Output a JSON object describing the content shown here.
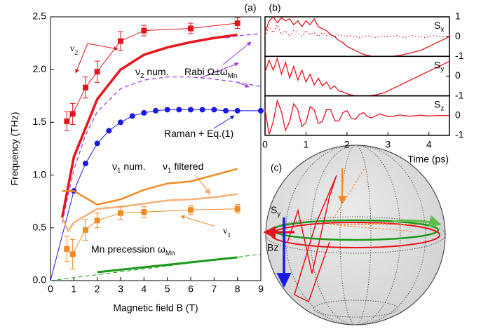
{
  "chart_data": [
    {
      "type": "line",
      "panel_label": "(a)",
      "xlabel": "Magnetic field B (T)",
      "ylabel": "Frequency (THz)",
      "xlim": [
        0,
        9
      ],
      "ylim": [
        0,
        2.5
      ],
      "xticks": [
        0,
        1,
        2,
        3,
        4,
        5,
        6,
        7,
        8,
        9
      ],
      "yticks": [
        {
          "value": 0,
          "label": "0.0"
        },
        {
          "value": 0.5,
          "label": "0.5"
        },
        {
          "value": 1,
          "label": "1.0"
        },
        {
          "value": 1.5,
          "label": "1.5"
        },
        {
          "value": 2,
          "label": "2.0"
        },
        {
          "value": 2.5,
          "label": "2.5"
        }
      ],
      "series": [
        {
          "color": "#e8141c",
          "width": 1,
          "marker": "square",
          "x": [
            0.7,
            0.95,
            1.5,
            2,
            3,
            4,
            6,
            8
          ],
          "values": [
            1.51,
            1.58,
            1.83,
            1.98,
            2.27,
            2.37,
            2.39,
            2.44
          ],
          "errors": [
            0.09,
            0.1,
            0.1,
            0.1,
            0.09,
            0.05,
            0.05,
            0.05
          ]
        },
        {
          "color": "#e8141c",
          "width": 3.5,
          "x": [
            0.5,
            1,
            2,
            3,
            4,
            5,
            6,
            7,
            8
          ],
          "values": [
            0.6,
            1.17,
            1.72,
            2.0,
            2.14,
            2.21,
            2.26,
            2.3,
            2.33
          ]
        },
        {
          "color": "#9933ee",
          "width": 1.2,
          "dash": "dash",
          "x": [
            0.5,
            1,
            1.5,
            2,
            3,
            4,
            5,
            6,
            7,
            8,
            9
          ],
          "values": [
            0.55,
            1.05,
            1.38,
            1.6,
            1.82,
            1.9,
            1.93,
            1.93,
            1.91,
            1.88,
            1.84
          ]
        },
        {
          "color": "#9933ee",
          "width": 1.2,
          "dash": "dash",
          "x": [
            7.5,
            8,
            8.5,
            9
          ],
          "values": [
            2.3,
            2.32,
            2.33,
            2.34
          ]
        },
        {
          "color": "#1a1ae6",
          "width": 1,
          "x": [
            0,
            1,
            1.5,
            2,
            2.5,
            3,
            3.5,
            4,
            4.5,
            5,
            5.5,
            6,
            6.5,
            7,
            7.5,
            8,
            9
          ],
          "values": [
            0,
            0.85,
            1.11,
            1.3,
            1.42,
            1.5,
            1.56,
            1.59,
            1.61,
            1.62,
            1.62,
            1.62,
            1.62,
            1.62,
            1.61,
            1.61,
            1.61
          ]
        },
        {
          "color": "#1a1ae6",
          "width": 0,
          "marker": "circle",
          "x": [
            1,
            1.5,
            2,
            2.5,
            3,
            3.5,
            4,
            4.5,
            5,
            5.5,
            6,
            6.5,
            7,
            7.5,
            8,
            9
          ],
          "values": [
            0.85,
            1.11,
            1.3,
            1.42,
            1.5,
            1.56,
            1.59,
            1.61,
            1.62,
            1.62,
            1.62,
            1.62,
            1.62,
            1.61,
            1.61,
            1.61
          ]
        },
        {
          "color": "#f08a24",
          "width": 2.5,
          "x": [
            0.5,
            1,
            2,
            3,
            4,
            5,
            6,
            7,
            8
          ],
          "values": [
            0.85,
            0.85,
            0.72,
            0.77,
            0.86,
            0.92,
            0.94,
            1.0,
            1.06
          ]
        },
        {
          "color": "#f7b07a",
          "width": 2.5,
          "x": [
            0.5,
            0.75,
            1,
            2,
            3,
            4,
            5,
            6,
            7,
            8
          ],
          "values": [
            0.6,
            0.47,
            0.55,
            0.68,
            0.7,
            0.73,
            0.76,
            0.77,
            0.79,
            0.82
          ]
        },
        {
          "color": "#f08a24",
          "width": 1,
          "marker": "square",
          "x": [
            0.7,
            0.95,
            1.5,
            2,
            3,
            4,
            6,
            8
          ],
          "values": [
            0.3,
            0.25,
            0.48,
            0.57,
            0.64,
            0.65,
            0.67,
            0.68
          ],
          "errors": [
            0.12,
            0.14,
            0.1,
            0.07,
            0.06,
            0.05,
            0.04,
            0.04
          ]
        },
        {
          "color": "#1a9a1a",
          "width": 3,
          "x": [
            2,
            8
          ],
          "values": [
            0.08,
            0.22
          ]
        },
        {
          "color": "#1a9a1a",
          "width": 1,
          "dash": "dash",
          "x": [
            0,
            9
          ],
          "values": [
            0,
            0.25
          ]
        }
      ],
      "annotations": [
        {
          "color": "#e8141c",
          "size": 30,
          "parts": [
            {
              "t": "ν"
            },
            {
              "t": "2",
              "sub": true
            }
          ]
        },
        {
          "color": "#e8141c",
          "size": 14,
          "parts": [
            {
              "t": "ν"
            },
            {
              "t": "2",
              "sub": true
            },
            {
              "t": " num."
            }
          ]
        },
        {
          "color": "#9933ee",
          "size": 14,
          "parts": [
            {
              "t": "Rabi Ω±ω"
            },
            {
              "t": "Mn",
              "sub": true
            }
          ]
        },
        {
          "color": "#1a1ae6",
          "size": 14,
          "parts": [
            {
              "t": "Raman + Eq.(1)"
            }
          ]
        },
        {
          "color": "#f08a24",
          "size": 14,
          "parts": [
            {
              "t": "ν"
            },
            {
              "t": "1",
              "sub": true
            },
            {
              "t": " num."
            }
          ]
        },
        {
          "color": "#f7b07a",
          "size": 14,
          "parts": [
            {
              "t": "ν"
            },
            {
              "t": "1",
              "sub": true
            },
            {
              "t": " filtered"
            }
          ]
        },
        {
          "color": "#f08a24",
          "size": 30,
          "parts": [
            {
              "t": "ν"
            },
            {
              "t": "1",
              "sub": true
            }
          ]
        },
        {
          "color": "#1a9a1a",
          "size": 14,
          "parts": [
            {
              "t": "Mn precession ω"
            },
            {
              "t": "Mn",
              "sub": true
            }
          ]
        }
      ]
    },
    {
      "type": "line",
      "panel_label": "(b)",
      "xlabel": "Time (ps)",
      "xlim": [
        0,
        4.5
      ],
      "xticks": [
        0,
        1,
        2,
        3,
        4
      ],
      "x": [
        0,
        0.1,
        0.2,
        0.3,
        0.4,
        0.5,
        0.6,
        0.7,
        0.8,
        0.9,
        1,
        1.1,
        1.2,
        1.3,
        1.4,
        1.5,
        1.6,
        1.7,
        1.8,
        1.9,
        2,
        2.1,
        2.2,
        2.3,
        2.4,
        2.5,
        2.6,
        2.7,
        2.8,
        2.9,
        3,
        3.1,
        3.2,
        3.3,
        3.4,
        3.5,
        3.6,
        3.7,
        3.8,
        3.9,
        4,
        4.1,
        4.2,
        4.3,
        4.4,
        4.5
      ],
      "subplots": [
        {
          "label": [
            {
              "t": "S"
            },
            {
              "t": "x",
              "sub": true
            }
          ],
          "ylim": [
            -1,
            1
          ],
          "yticks": [
            -1,
            0,
            1
          ],
          "series": [
            {
              "color": "#e8141c",
              "width": 1.3,
              "values": [
                0.2,
                0.8,
                1,
                0.7,
                0.95,
                0.8,
                0.9,
                0.6,
                0.8,
                0.5,
                0.8,
                0.6,
                0.9,
                0.5,
                0.4,
                0.3,
                0.1,
                0,
                -0.2,
                -0.3,
                -0.5,
                -0.6,
                -0.7,
                -0.8,
                -0.9,
                -0.95,
                -1,
                -1,
                -1,
                -1,
                -1,
                -1,
                -0.98,
                -0.95,
                -0.9,
                -0.85,
                -0.8,
                -0.75,
                -0.7,
                -0.6,
                -0.5,
                -0.4,
                -0.3,
                -0.2,
                -0.1,
                0
              ]
            },
            {
              "color": "#e8141c",
              "width": 1.2,
              "dash": "dot",
              "values": [
                0,
                0.5,
                0.2,
                0.6,
                0.1,
                0.3,
                0,
                0.3,
                0.2,
                0,
                0.3,
                0.1,
                0.2,
                0,
                0.2,
                0.05,
                0.1,
                0,
                0.1,
                0.05,
                0,
                0.05,
                0,
                -0.05,
                0,
                0.05,
                0,
                -0.05,
                0,
                0,
                0,
                0,
                0.05,
                0,
                -0.05,
                0,
                0.05,
                0,
                0,
                -0.05,
                0,
                0.05,
                0,
                0,
                0,
                0
              ]
            }
          ]
        },
        {
          "label": [
            {
              "t": "S"
            },
            {
              "t": "y",
              "sub": true
            }
          ],
          "ylim": [
            -1,
            1
          ],
          "yticks": [
            -1,
            0
          ],
          "series": [
            {
              "color": "#e8141c",
              "width": 1.3,
              "values": [
                0.2,
                0.8,
                0.3,
                0.9,
                0.1,
                0.7,
                -0.1,
                0.5,
                -0.2,
                0.3,
                -0.3,
                0.1,
                -0.45,
                -0.1,
                -0.5,
                -0.3,
                -0.65,
                -0.5,
                -0.75,
                -0.8,
                -0.9,
                -0.95,
                -1,
                -1,
                -1,
                -1,
                -0.98,
                -0.95,
                -0.9,
                -0.85,
                -0.75,
                -0.65,
                -0.55,
                -0.45,
                -0.35,
                -0.25,
                -0.15,
                -0.05,
                0.05,
                0.15,
                0.25,
                0.35,
                0.45,
                0.55,
                0.65,
                0.75
              ]
            }
          ]
        },
        {
          "label": [
            {
              "t": "S"
            },
            {
              "t": "z",
              "sub": true
            }
          ],
          "ylim": [
            -1,
            1
          ],
          "yticks": [
            -1,
            0
          ],
          "series": [
            {
              "color": "#e8141c",
              "width": 1.3,
              "values": [
                0.3,
                -0.95,
                -0.3,
                0.75,
                0.2,
                -0.75,
                -0.3,
                0.6,
                0.3,
                -0.55,
                -0.35,
                0.45,
                0.3,
                -0.4,
                -0.3,
                0.3,
                0.3,
                -0.25,
                -0.28,
                0.15,
                0.25,
                -0.12,
                -0.2,
                0.05,
                0.15,
                -0.05,
                -0.12,
                -0.02,
                0.08,
                0.02,
                -0.05,
                -0.05,
                0,
                0.03,
                0,
                -0.03,
                -0.02,
                0,
                0.02,
                0,
                -0.02,
                -0.01,
                0,
                0.01,
                0,
                0
              ]
            }
          ]
        }
      ]
    }
  ],
  "sphere": {
    "panel_label": "(c)",
    "spin_label": [
      {
        "t": "S"
      },
      {
        "t": "y",
        "sub": true
      }
    ],
    "field_label": "Bz"
  }
}
